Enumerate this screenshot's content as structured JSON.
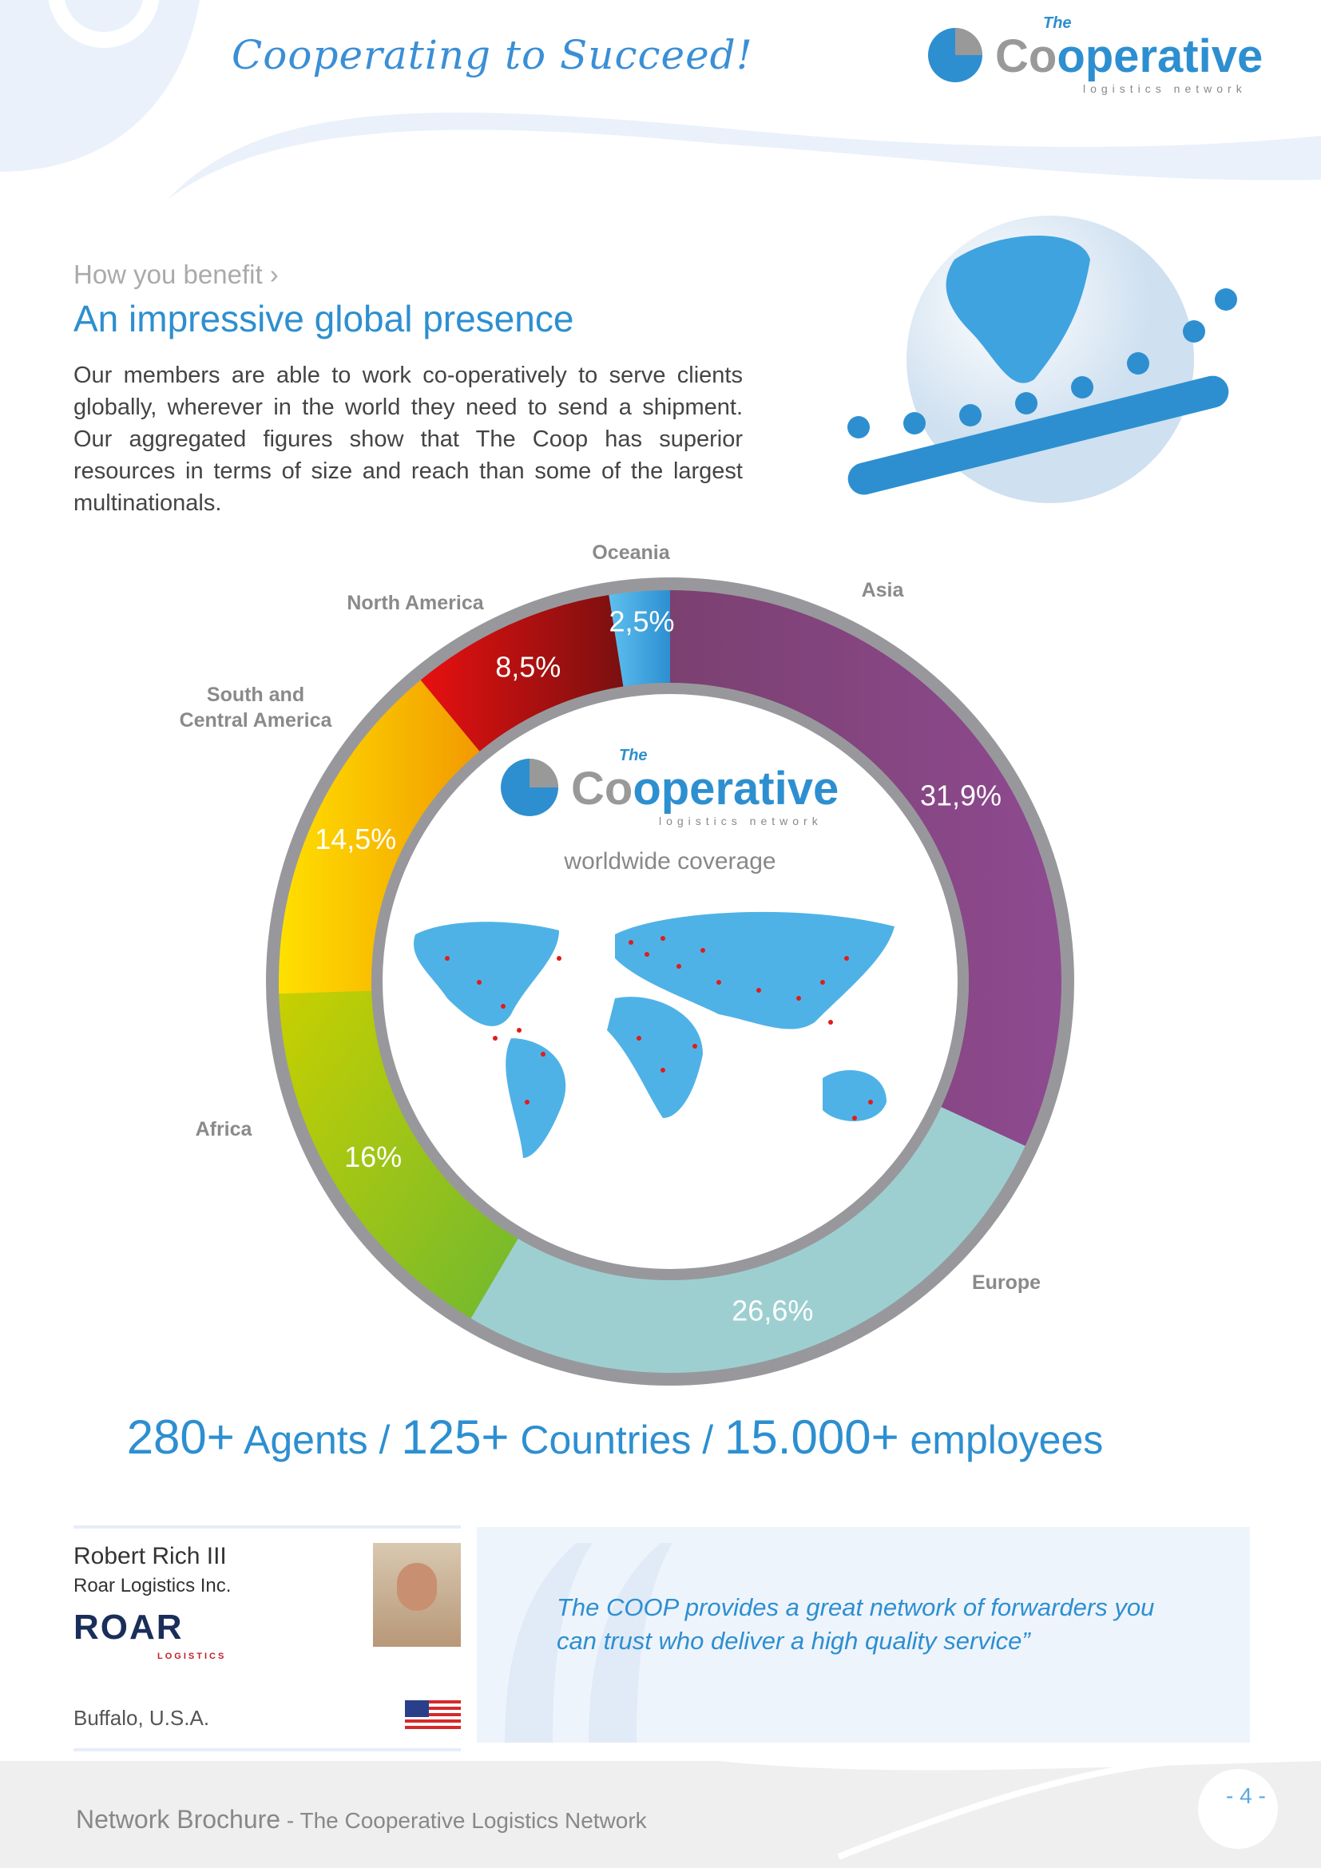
{
  "header": {
    "tagline": "Cooperating to Succeed!",
    "logo": {
      "the": "The",
      "co": "Co",
      "operative": "operative",
      "sub": "logistics network"
    }
  },
  "section": {
    "kicker": "How you benefit ›",
    "heading": "An impressive global presence",
    "intro": "Our members are able to work co-operatively to serve clients globally, wherever in the world they need to send a shipment. Our aggregated figures show that The Coop has superior resources in terms of size and reach than some of the largest multinationals."
  },
  "chart_data": {
    "type": "pie",
    "donut": true,
    "center": {
      "logo_the": "The",
      "logo_co": "Co",
      "logo_operative": "operative",
      "logo_sub": "logistics network",
      "caption": "worldwide coverage"
    },
    "slices": [
      {
        "name": "Asia",
        "value": 31.9,
        "label": "31,9%",
        "color": "#84447a"
      },
      {
        "name": "Europe",
        "value": 26.6,
        "label": "26,6%",
        "color": "#9dcfd1"
      },
      {
        "name": "Africa",
        "value": 16,
        "label": "16%",
        "color": "#a8c81a"
      },
      {
        "name": "South and Central America",
        "value": 14.5,
        "label": "14,5%",
        "color": "#f6a200"
      },
      {
        "name": "North America",
        "value": 8.5,
        "label": "8,5%",
        "color": "#d01818"
      },
      {
        "name": "Oceania",
        "value": 2.5,
        "label": "2,5%",
        "color": "#3fa3e0"
      }
    ]
  },
  "labels": {
    "asia": "Asia",
    "europe": "Europe",
    "africa": "Africa",
    "sca1": "South and",
    "sca2": "Central America",
    "na": "North America",
    "oceania": "Oceania"
  },
  "stats": {
    "n1": "280+",
    "t1": " Agents / ",
    "n2": "125+",
    "t2": " Countries / ",
    "n3": "15.000+",
    "t3": " employees"
  },
  "testimonial": {
    "name": "Robert Rich III",
    "company": "Roar Logistics Inc.",
    "company_logo": "ROAR",
    "company_logo_sub": "LOGISTICS",
    "location": "Buffalo, U.S.A.",
    "flag": "us-flag",
    "quote": "The COOP provides a great network of forwarders you can trust who deliver a high quality service”"
  },
  "footer": {
    "title": "Network Brochure",
    "subtitle": " - The Cooperative Logistics Network",
    "page": "- 4 -"
  }
}
